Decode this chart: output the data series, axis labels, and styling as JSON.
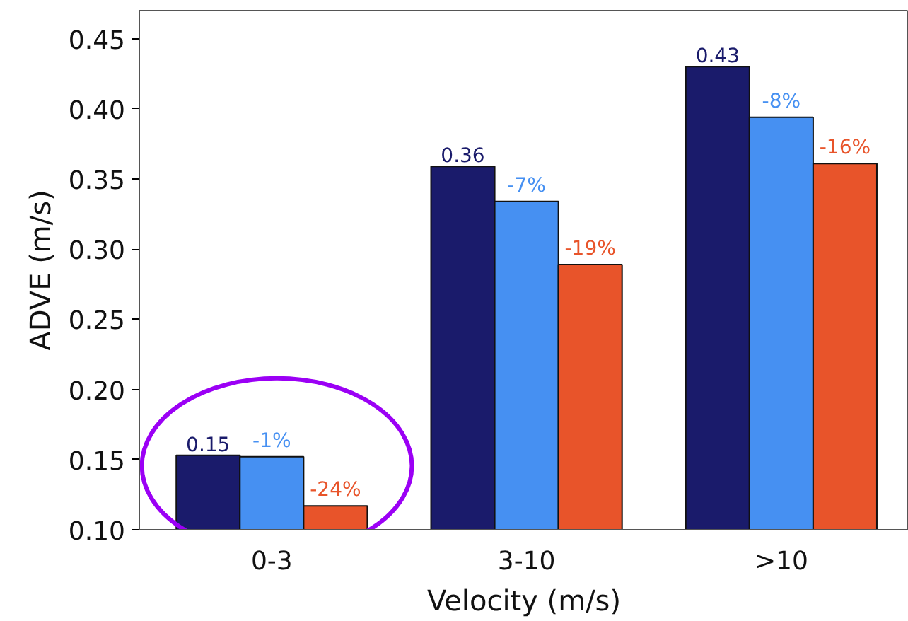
{
  "chart_data": {
    "type": "bar",
    "xlabel": "Velocity (m/s)",
    "ylabel": "ADVE (m/s)",
    "categories": [
      "0-3",
      "3-10",
      ">10"
    ],
    "series": [
      {
        "color": "#1a1b6b",
        "values": [
          0.153,
          0.359,
          0.43
        ],
        "value_labels": [
          "0.15",
          "0.36",
          "0.43"
        ]
      },
      {
        "color": "#4690f2",
        "values": [
          0.152,
          0.334,
          0.394
        ]
      },
      {
        "color": "#e8542a",
        "values": [
          0.117,
          0.289,
          0.361
        ]
      }
    ],
    "annotations": [
      {
        "text": "-1%",
        "x": "0-3",
        "y": 0.152
      },
      {
        "text": "-7%",
        "x": "3-10",
        "y": 0.334
      },
      {
        "text": "-8%",
        "x": ">10",
        "y": 0.394
      },
      "-24%",
      "-19%",
      "-16%"
    ],
    "ylim": [
      0.1,
      0.47
    ],
    "yticks": [
      {
        "value": 0.1,
        "label": "0.10"
      },
      0.15,
      {
        "value": 0.2,
        "label": "0.20"
      },
      0.25,
      {
        "value": 0.3,
        "label": "0.30"
      },
      0.35,
      {
        "value": 0.4,
        "label": "0.40"
      },
      0.45
    ],
    "grid": false
  }
}
